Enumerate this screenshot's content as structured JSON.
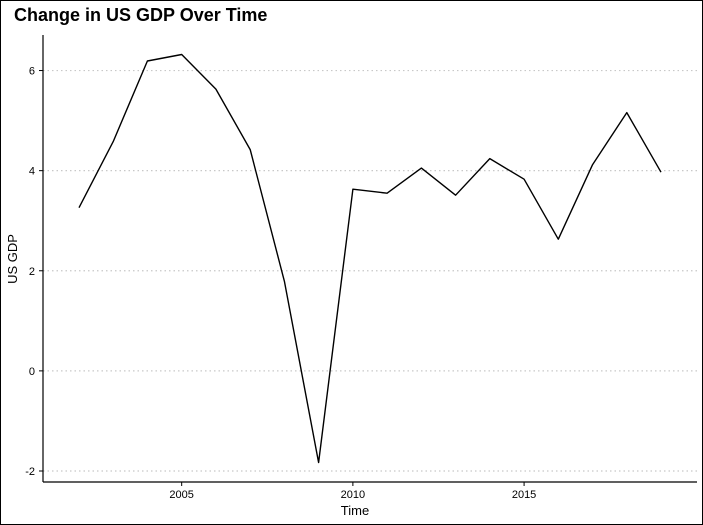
{
  "chart_data": {
    "type": "line",
    "title": "Change in US GDP Over Time",
    "xlabel": "Time",
    "ylabel": "US GDP",
    "x": [
      2002,
      2003,
      2004,
      2005,
      2006,
      2007,
      2008,
      2009,
      2010,
      2011,
      2012,
      2013,
      2014,
      2015,
      2016,
      2017,
      2018,
      2019
    ],
    "y": [
      3.26,
      4.58,
      6.19,
      6.32,
      5.63,
      4.42,
      1.79,
      -1.83,
      3.63,
      3.55,
      4.05,
      3.51,
      4.24,
      3.83,
      2.63,
      4.12,
      5.16,
      3.97
    ],
    "xticks": [
      2005,
      2010,
      2015
    ],
    "yticks": [
      -2,
      0,
      2,
      4,
      6
    ],
    "xlim": [
      2000.95,
      2020.05
    ],
    "ylim": [
      -2.22,
      6.71
    ],
    "grid": "horizontal-dotted",
    "line_color": "#000000",
    "grid_color": "#c8c8c8"
  }
}
